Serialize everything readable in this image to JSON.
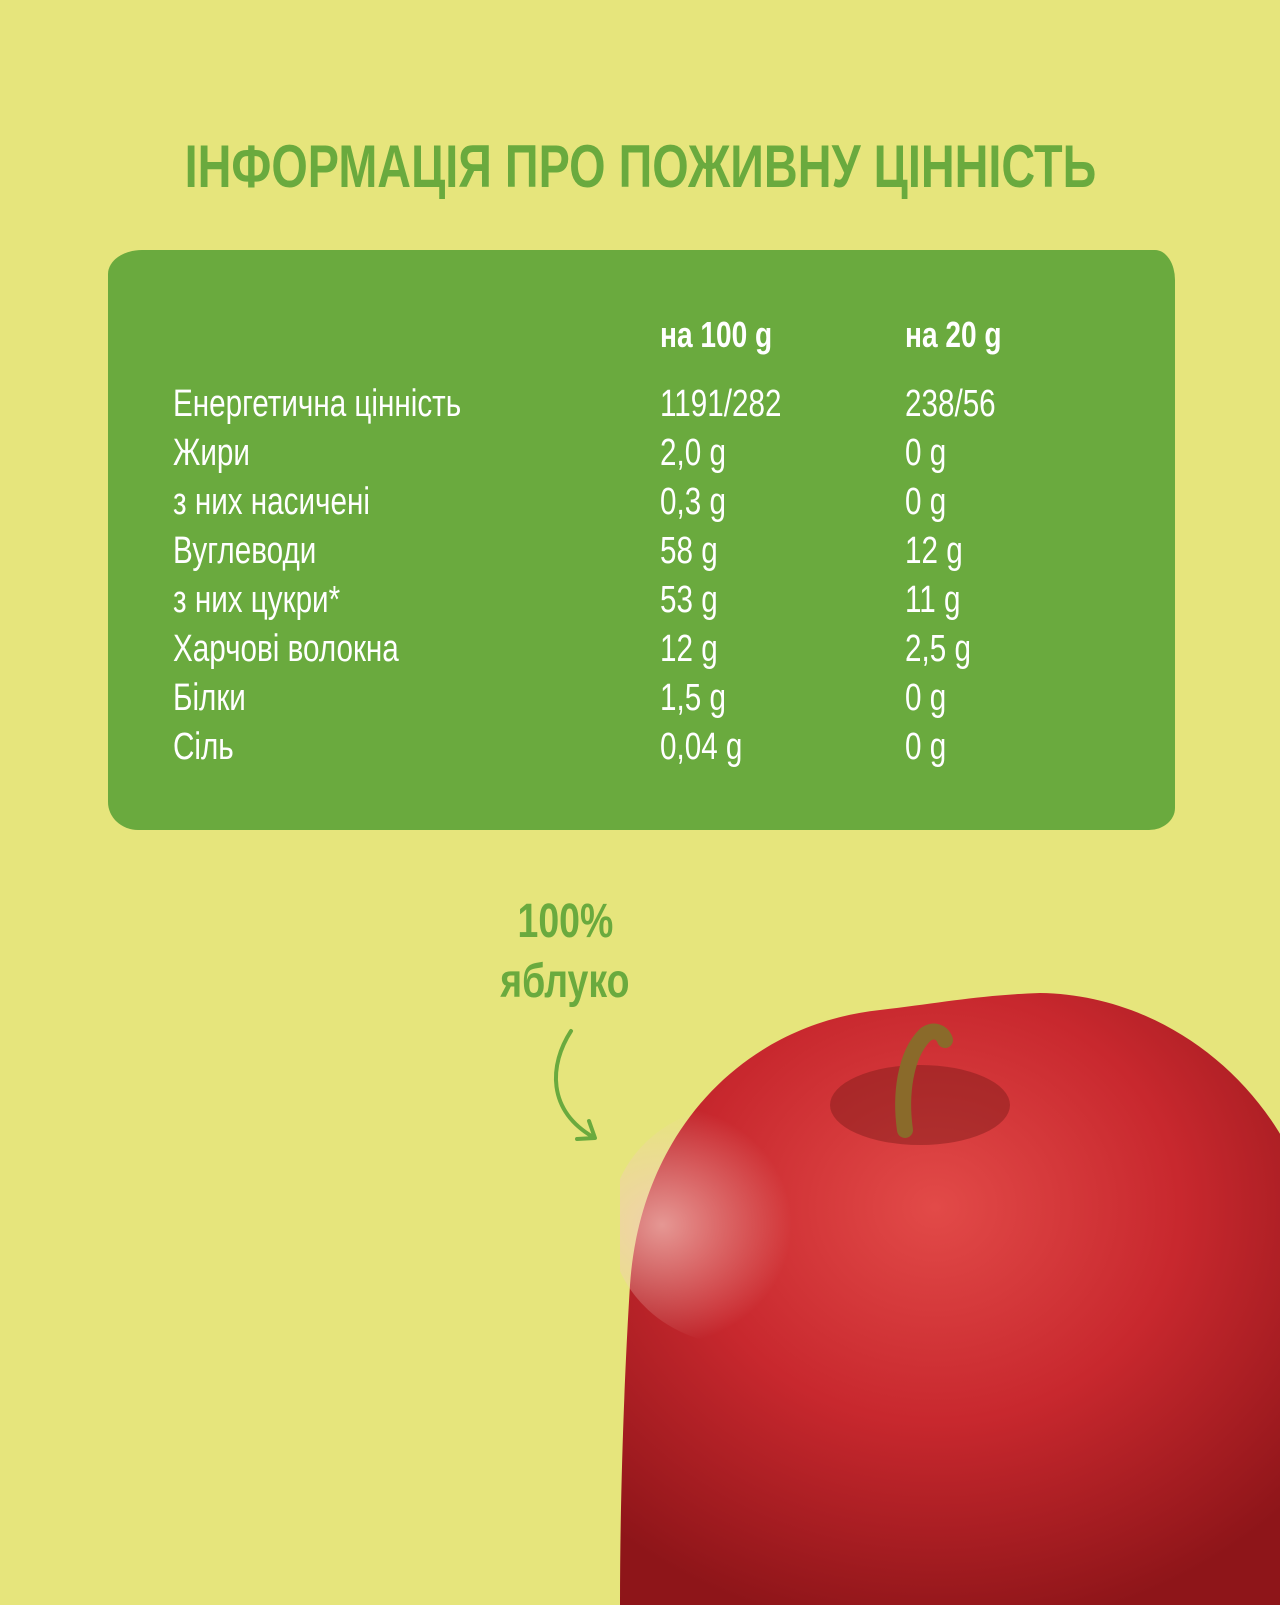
{
  "title": "ІНФОРМАЦІЯ ПРО ПОЖИВНУ ЦІННІСТЬ",
  "table": {
    "headers": [
      "на 100 g",
      "на 20 g"
    ],
    "rows": [
      {
        "label": "Енергетична цінність",
        "per100": "1191/282",
        "per20": "238/56"
      },
      {
        "label": "Жири",
        "per100": "2,0 g",
        "per20": "0 g"
      },
      {
        "label": "з них насичені",
        "per100": "0,3 g",
        "per20": "0 g"
      },
      {
        "label": "Вуглеводи",
        "per100": "58 g",
        "per20": "12 g"
      },
      {
        "label": "з них цукри*",
        "per100": "53 g",
        "per20": "11 g"
      },
      {
        "label": "Харчові волокна",
        "per100": "12 g",
        "per20": "2,5 g"
      },
      {
        "label": "Білки",
        "per100": "1,5 g",
        "per20": "0 g"
      },
      {
        "label": "Сіль",
        "per100": "0,04 g",
        "per20": "0 g"
      }
    ]
  },
  "tagline": {
    "line1": "100%",
    "line2": "яблуко"
  },
  "colors": {
    "background": "#e6e57c",
    "accent_green": "#6aaa3e",
    "apple_red": "#c8282e"
  },
  "icons": [
    "curved-arrow-icon",
    "apple-image"
  ]
}
